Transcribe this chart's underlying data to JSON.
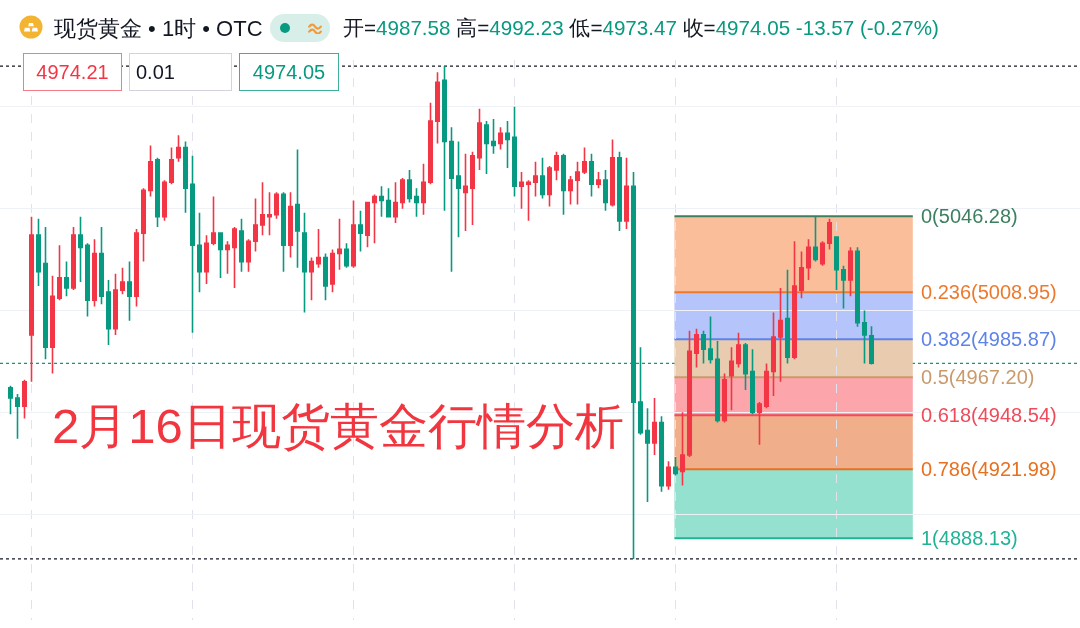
{
  "chart_data": {
    "type": "candlestick",
    "title": "现货黄金 • 1时 • OTC",
    "subtitle": "开=4987.58 高=4992.23 低=4973.47 收=4974.05 -13.57 (-0.27%)",
    "annotations": [
      "4974.21",
      "0.01",
      "4974.05",
      "2月16日现货黄金行情分析"
    ],
    "categories": [
      null,
      null,
      null,
      null,
      null,
      null,
      null,
      null,
      null,
      null,
      null,
      null,
      null,
      null,
      null,
      null,
      null,
      null,
      null,
      null,
      null,
      null,
      null,
      null,
      null,
      null,
      null,
      null,
      null,
      null,
      null,
      null,
      null,
      null,
      null,
      null,
      null,
      null,
      null,
      null,
      null,
      null,
      null,
      null,
      null,
      null,
      null,
      null,
      null,
      null,
      null,
      null,
      null,
      null,
      null,
      null,
      null,
      null,
      null,
      null,
      null,
      null,
      null,
      null,
      null,
      null,
      null,
      null,
      null,
      null,
      null,
      null,
      null,
      null,
      null,
      null,
      null,
      null,
      null,
      null,
      null,
      null,
      null,
      null,
      null,
      null,
      null,
      null,
      null,
      null,
      null,
      null,
      null,
      null,
      null,
      null,
      null,
      null,
      null,
      null,
      null,
      null,
      null,
      null,
      null,
      null,
      null,
      null,
      null,
      null,
      null,
      null,
      null,
      null,
      null,
      null,
      null,
      null,
      null,
      null,
      null,
      null,
      null,
      null
    ],
    "ohlc": [
      [
        4962,
        4963,
        4949,
        4957
      ],
      [
        4957,
        4959,
        4937,
        4953
      ],
      [
        4953,
        4966,
        4947,
        4965
      ],
      [
        4988,
        5046,
        4965,
        5037
      ],
      [
        5037,
        5045,
        5012,
        5019
      ],
      [
        5023,
        5041,
        4976,
        4982
      ],
      [
        4982,
        5017,
        4969,
        5007
      ],
      [
        5006,
        5032,
        5005,
        5016
      ],
      [
        5016,
        5024,
        5007,
        5011
      ],
      [
        5011,
        5041,
        5010,
        5037
      ],
      [
        5037,
        5046,
        5014,
        5031
      ],
      [
        5032,
        5033,
        4997,
        5005
      ],
      [
        5005,
        5035,
        5002,
        5028
      ],
      [
        5028,
        5041,
        5003,
        5007
      ],
      [
        5009,
        5015,
        4983,
        4991
      ],
      [
        4991,
        5018,
        4988,
        5010
      ],
      [
        5010,
        5021,
        5008,
        5014
      ],
      [
        5014,
        5024,
        4995,
        5007
      ],
      [
        5007,
        5040,
        5002,
        5038
      ],
      [
        5038,
        5060,
        5024,
        5059
      ],
      [
        5059,
        5081,
        5056,
        5073
      ],
      [
        5074,
        5075,
        5041,
        5046
      ],
      [
        5046,
        5064,
        5044,
        5063
      ],
      [
        5063,
        5080,
        5062,
        5074
      ],
      [
        5075,
        5086,
        5073,
        5080
      ],
      [
        5080,
        5083,
        5048,
        5060
      ],
      [
        5062,
        5076,
        4989,
        5032
      ],
      [
        5032,
        5048,
        5009,
        5019
      ],
      [
        5019,
        5037,
        5013,
        5033
      ],
      [
        5033,
        5056,
        5032,
        5038
      ],
      [
        5038,
        5038,
        5016,
        5030
      ],
      [
        5030,
        5034,
        5018,
        5032
      ],
      [
        5031,
        5041,
        5011,
        5040
      ],
      [
        5039,
        5045,
        5019,
        5024
      ],
      [
        5024,
        5035,
        5019,
        5034
      ],
      [
        5034,
        5055,
        5029,
        5042
      ],
      [
        5042,
        5063,
        5037,
        5047
      ],
      [
        5046,
        5058,
        5037,
        5047
      ],
      [
        5047,
        5058,
        5045,
        5057
      ],
      [
        5057,
        5058,
        5019,
        5032
      ],
      [
        5032,
        5058,
        5026,
        5051
      ],
      [
        5052,
        5079,
        5021,
        5039
      ],
      [
        5038,
        5048,
        4999,
        5019
      ],
      [
        5019,
        5026,
        5005,
        5024
      ],
      [
        5023,
        5040,
        5021,
        5026
      ],
      [
        5026,
        5028,
        5005,
        5012
      ],
      [
        5013,
        5030,
        5009,
        5028
      ],
      [
        5028,
        5045,
        5020,
        5030
      ],
      [
        5030,
        5033,
        5021,
        5022
      ],
      [
        5022,
        5054,
        5021,
        5042
      ],
      [
        5042,
        5049,
        5029,
        5038
      ],
      [
        5037,
        5053,
        5031,
        5053
      ],
      [
        5053,
        5057,
        5033,
        5056
      ],
      [
        5056,
        5061,
        5046,
        5054
      ],
      [
        5054,
        5060,
        5046,
        5046
      ],
      [
        5046,
        5063,
        5043,
        5053
      ],
      [
        5053,
        5065,
        5050,
        5064
      ],
      [
        5064,
        5069,
        5053,
        5055
      ],
      [
        5056,
        5060,
        5046,
        5053
      ],
      [
        5053,
        5072,
        5047,
        5063
      ],
      [
        5063,
        5102,
        5062,
        5093
      ],
      [
        5093,
        5117,
        5082,
        5112
      ],
      [
        5113,
        5120,
        5049,
        5083
      ],
      [
        5083,
        5090,
        5019,
        5065
      ],
      [
        5066,
        5083,
        5036,
        5060
      ],
      [
        5058,
        5077,
        5039,
        5061
      ],
      [
        5060,
        5078,
        5042,
        5076
      ],
      [
        5075,
        5099,
        5069,
        5092
      ],
      [
        5091,
        5093,
        5067,
        5082
      ],
      [
        5083,
        5094,
        5077,
        5081
      ],
      [
        5082,
        5090,
        5079,
        5087
      ],
      [
        5087,
        5093,
        5070,
        5084
      ],
      [
        5085,
        5100,
        5056,
        5061
      ],
      [
        5061,
        5068,
        5050,
        5063
      ],
      [
        5062,
        5064,
        5044,
        5063
      ],
      [
        5063,
        5073,
        5056,
        5066
      ],
      [
        5066,
        5075,
        5055,
        5057
      ],
      [
        5057,
        5071,
        5051,
        5070
      ],
      [
        5069,
        5078,
        5064,
        5076
      ],
      [
        5076,
        5077,
        5047,
        5059
      ],
      [
        5059,
        5066,
        5052,
        5064
      ],
      [
        5064,
        5073,
        5052,
        5068
      ],
      [
        5068,
        5080,
        5067,
        5073
      ],
      [
        5073,
        5077,
        5056,
        5062
      ],
      [
        5062,
        5068,
        5060,
        5064
      ],
      [
        5064,
        5069,
        5049,
        5053
      ],
      [
        5052,
        5084,
        5051,
        5075
      ],
      [
        5075,
        5078,
        5039,
        5044
      ],
      [
        5044,
        5075,
        5040,
        5061
      ],
      [
        5061,
        5068,
        4878,
        4955
      ],
      [
        4955,
        4982,
        4939,
        4940
      ],
      [
        4941,
        4952,
        4906,
        4935
      ],
      [
        4935,
        4957,
        4929,
        4945
      ],
      [
        4945,
        4948,
        4911,
        4914
      ],
      [
        4914,
        4926,
        4912,
        4923
      ],
      [
        4923,
        4928,
        4919,
        4920
      ],
      [
        4921,
        4950,
        4914,
        4929
      ],
      [
        4929,
        4990,
        4928,
        4980
      ],
      [
        4979,
        4991,
        4972,
        4988
      ],
      [
        4988,
        4990,
        4974,
        4981
      ],
      [
        4981,
        4997,
        4974,
        4976
      ],
      [
        4976,
        4985,
        4945,
        4946
      ],
      [
        4946,
        4969,
        4945,
        4966
      ],
      [
        4968,
        4982,
        4951,
        4975
      ],
      [
        4974,
        4989,
        4972,
        4983
      ],
      [
        4983,
        4984,
        4961,
        4969
      ],
      [
        4970,
        4981,
        4949,
        4950
      ],
      [
        4950,
        4955,
        4934,
        4954
      ],
      [
        4953,
        4974,
        4952,
        4970
      ],
      [
        4970,
        4999,
        4958,
        4987
      ],
      [
        4987,
        5011,
        4965,
        4995
      ],
      [
        4996,
        5020,
        4974,
        4977
      ],
      [
        4977,
        5034,
        4976,
        5012
      ],
      [
        5010,
        5029,
        5006,
        5021
      ],
      [
        5021,
        5035,
        5015,
        5031
      ],
      [
        5031,
        5046,
        5024,
        5025
      ],
      [
        5023,
        5034,
        5022,
        5033
      ],
      [
        5033,
        5045,
        5030,
        5043
      ],
      [
        5036,
        5036,
        5010,
        5020
      ],
      [
        5020,
        5022,
        5001,
        5015
      ],
      [
        5015,
        5031,
        5007,
        5029
      ],
      [
        5029,
        5031,
        4992,
        4994
      ],
      [
        4994,
        5000,
        4974,
        4988
      ],
      [
        4987.58,
        4992.23,
        4973.47,
        4974.05
      ]
    ],
    "colors": [
      "#089981",
      "#089981",
      "#f23645",
      "#f23645",
      "#089981",
      "#089981",
      "#f23645",
      "#f23645",
      "#089981",
      "#f23645",
      "#089981",
      "#089981",
      "#f23645",
      "#089981",
      "#089981",
      "#f23645",
      "#f23645",
      "#089981",
      "#f23645",
      "#f23645",
      "#f23645",
      "#089981",
      "#f23645",
      "#f23645",
      "#f23645",
      "#089981",
      "#089981",
      "#089981",
      "#f23645",
      "#f23645",
      "#089981",
      "#f23645",
      "#f23645",
      "#089981",
      "#f23645",
      "#f23645",
      "#f23645",
      "#f23645",
      "#f23645",
      "#089981",
      "#f23645",
      "#089981",
      "#089981",
      "#f23645",
      "#f23645",
      "#089981",
      "#f23645",
      "#f23645",
      "#089981",
      "#f23645",
      "#089981",
      "#f23645",
      "#f23645",
      "#089981",
      "#089981",
      "#f23645",
      "#f23645",
      "#089981",
      "#089981",
      "#f23645",
      "#f23645",
      "#f23645",
      "#089981",
      "#089981",
      "#089981",
      "#f23645",
      "#f23645",
      "#f23645",
      "#089981",
      "#089981",
      "#f23645",
      "#089981",
      "#089981",
      "#f23645",
      "#f23645",
      "#f23645",
      "#089981",
      "#f23645",
      "#f23645",
      "#089981",
      "#f23645",
      "#f23645",
      "#f23645",
      "#089981",
      "#f23645",
      "#089981",
      "#f23645",
      "#089981",
      "#f23645",
      "#089981",
      "#089981",
      "#089981",
      "#f23645",
      "#089981",
      "#f23645",
      "#089981",
      "#f23645",
      "#f23645",
      "#f23645",
      "#089981",
      "#089981",
      "#089981",
      "#f23645",
      "#f23645",
      "#f23645",
      "#089981",
      "#089981",
      "#f23645",
      "#f23645",
      "#f23645",
      "#f23645",
      "#089981",
      "#f23645",
      "#f23645",
      "#f23645",
      "#089981",
      "#f23645",
      "#f23645",
      "#089981",
      "#089981",
      "#f23645",
      "#089981",
      "#089981",
      "#089981"
    ],
    "ylim": [
      4848,
      5123
    ],
    "yticks": [
      {
        "value": 4900,
        "label": null
      },
      {
        "value": 4950,
        "label": null
      },
      {
        "value": 5000,
        "label": null
      },
      {
        "value": 5050,
        "label": null
      },
      {
        "value": 5100,
        "label": null
      }
    ],
    "grid": true,
    "ref_lines": [
      {
        "axis": "y",
        "value": 5120,
        "color": "#131722",
        "line_style": "dotted"
      },
      {
        "axis": "y",
        "value": 4974.05,
        "color": "#089981",
        "line_style": "dotted"
      },
      {
        "axis": "y",
        "value": 4878,
        "color": "#131722",
        "line_style": "dotted"
      },
      {
        "axis": "y",
        "value": 5046.28,
        "label": "0(5046.28)",
        "color": "#3d8060",
        "line_style": "solid"
      },
      {
        "axis": "y",
        "value": 5008.95,
        "label": "0.236(5008.95)",
        "color": "#ec7a2e",
        "line_style": "solid"
      },
      {
        "axis": "y",
        "value": 4985.87,
        "label": "0.382(4985.87)",
        "color": "#5f83e8",
        "line_style": "solid"
      },
      {
        "axis": "y",
        "value": 4967.2,
        "label": "0.5(4967.20)",
        "color": "#c99a6c",
        "line_style": "solid"
      },
      {
        "axis": "y",
        "value": 4948.54,
        "label": "0.618(4948.54)",
        "color": "#f04b5a",
        "line_style": "solid"
      },
      {
        "axis": "y",
        "value": 4921.98,
        "label": "0.786(4921.98)",
        "color": "#e8701f",
        "line_style": "solid"
      },
      {
        "axis": "y",
        "value": 4888.13,
        "label": "1(4888.13)",
        "color": "#22b397",
        "line_style": "solid"
      }
    ],
    "bands": [
      {
        "axis": "y",
        "from": 5008.95,
        "to": 5046.28,
        "color": "#fbbe9b"
      },
      {
        "axis": "y",
        "from": 4985.87,
        "to": 5008.95,
        "color": "#b5c4fa"
      },
      {
        "axis": "y",
        "from": 4967.2,
        "to": 4985.87,
        "color": "#e9cbb0"
      },
      {
        "axis": "y",
        "from": 4948.54,
        "to": 4967.2,
        "color": "#fca5ab"
      },
      {
        "axis": "y",
        "from": 4921.98,
        "to": 4948.54,
        "color": "#f1ae8b"
      },
      {
        "axis": "y",
        "from": 4888.13,
        "to": 4921.98,
        "color": "#94e1cf"
      }
    ]
  }
}
